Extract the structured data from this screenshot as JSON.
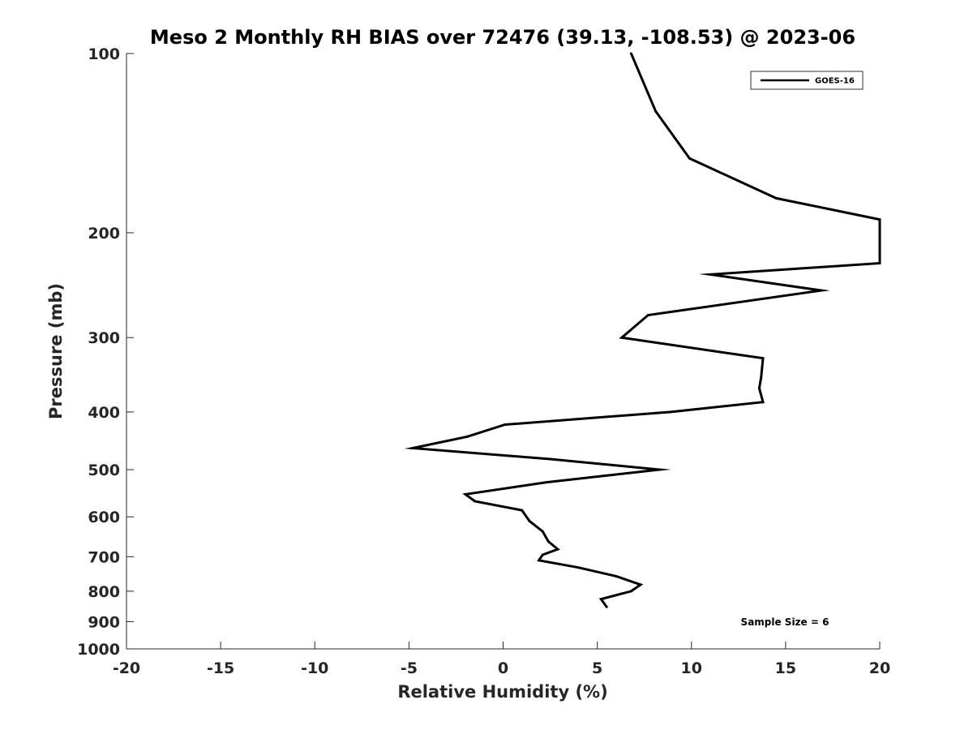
{
  "chart_data": {
    "type": "line",
    "title": "Meso 2 Monthly RH BIAS over 72476 (39.13, -108.53) @ 2023-06",
    "xlabel": "Relative Humidity (%)",
    "ylabel": "Pressure (mb)",
    "xlim": [
      -20,
      20
    ],
    "ylim": [
      1000,
      100
    ],
    "y_scale": "log",
    "y_reversed": true,
    "grid": false,
    "x_ticks": [
      -20,
      -15,
      -10,
      -5,
      0,
      5,
      10,
      15,
      20
    ],
    "x_tick_labels": [
      "-20",
      "-15",
      "-10",
      "-5",
      "0",
      "5",
      "10",
      "15",
      "20"
    ],
    "y_ticks": [
      100,
      200,
      300,
      400,
      500,
      600,
      700,
      800,
      900,
      1000
    ],
    "y_tick_labels": [
      "100",
      "200",
      "300",
      "400",
      "500",
      "600",
      "700",
      "800",
      "900",
      "1000"
    ],
    "legend_position": "top-right",
    "series": [
      {
        "name": "GOES-16",
        "color": "#000000",
        "points": [
          {
            "x": 6.8,
            "y": 100
          },
          {
            "x": 8.1,
            "y": 125
          },
          {
            "x": 9.9,
            "y": 150
          },
          {
            "x": 14.5,
            "y": 175
          },
          {
            "x": 20.0,
            "y": 190
          },
          {
            "x": 20.0,
            "y": 225
          },
          {
            "x": 11.0,
            "y": 235
          },
          {
            "x": 16.9,
            "y": 250
          },
          {
            "x": 7.7,
            "y": 275
          },
          {
            "x": 6.3,
            "y": 300
          },
          {
            "x": 13.8,
            "y": 325
          },
          {
            "x": 13.7,
            "y": 350
          },
          {
            "x": 13.6,
            "y": 365
          },
          {
            "x": 13.8,
            "y": 385
          },
          {
            "x": 8.9,
            "y": 400
          },
          {
            "x": 0.1,
            "y": 420
          },
          {
            "x": -1.9,
            "y": 440
          },
          {
            "x": -4.8,
            "y": 460
          },
          {
            "x": 2.5,
            "y": 480
          },
          {
            "x": 8.3,
            "y": 500
          },
          {
            "x": 2.3,
            "y": 525
          },
          {
            "x": -2.0,
            "y": 550
          },
          {
            "x": -1.5,
            "y": 565
          },
          {
            "x": 1.0,
            "y": 585
          },
          {
            "x": 1.4,
            "y": 610
          },
          {
            "x": 2.1,
            "y": 635
          },
          {
            "x": 2.4,
            "y": 660
          },
          {
            "x": 2.9,
            "y": 680
          },
          {
            "x": 2.1,
            "y": 695
          },
          {
            "x": 1.9,
            "y": 710
          },
          {
            "x": 4.0,
            "y": 730
          },
          {
            "x": 6.0,
            "y": 755
          },
          {
            "x": 7.3,
            "y": 780
          },
          {
            "x": 6.8,
            "y": 800
          },
          {
            "x": 5.2,
            "y": 825
          },
          {
            "x": 5.5,
            "y": 850
          }
        ]
      }
    ],
    "annotations": [
      {
        "text": "Sample Size = 6",
        "position": "bottom-right"
      }
    ]
  }
}
